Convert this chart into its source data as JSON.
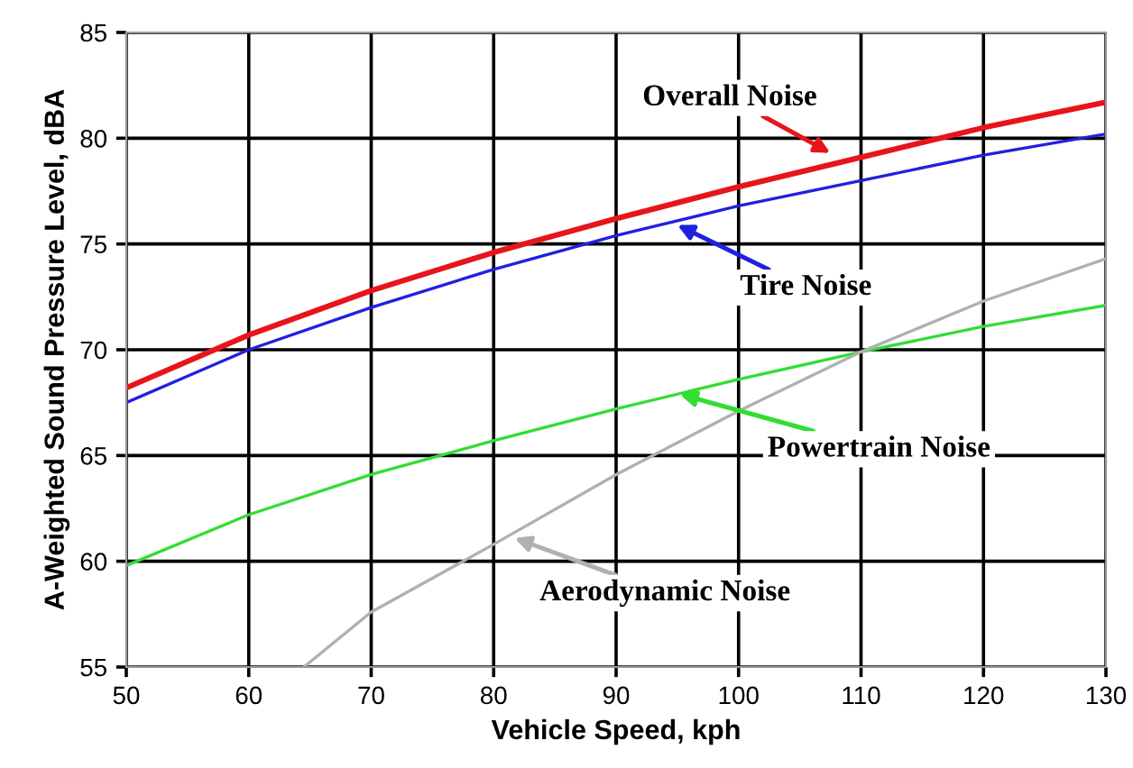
{
  "chart_data": {
    "type": "line",
    "xlabel": "Vehicle Speed, kph",
    "ylabel": "A-Weighted Sound Pressure Level, dBA",
    "xlim": [
      50,
      130
    ],
    "ylim": [
      55,
      85
    ],
    "xticks": [
      50,
      60,
      70,
      80,
      90,
      100,
      110,
      120,
      130
    ],
    "yticks": [
      55,
      60,
      65,
      70,
      75,
      80,
      85
    ],
    "grid": true,
    "legend": false,
    "marker": "none",
    "line_style": "solid",
    "series": [
      {
        "color": "#e8141c",
        "x": [
          50,
          60,
          70,
          80,
          90,
          100,
          110,
          120,
          130
        ],
        "values": [
          68.2,
          70.7,
          72.8,
          74.6,
          76.2,
          77.7,
          79.1,
          80.5,
          81.7
        ]
      },
      {
        "color": "#2020e0",
        "x": [
          50,
          60,
          70,
          80,
          90,
          100,
          110,
          120,
          130
        ],
        "values": [
          67.5,
          70.0,
          72.0,
          73.8,
          75.4,
          76.8,
          78.0,
          79.2,
          80.2
        ]
      },
      {
        "color": "#33dd33",
        "x": [
          50,
          60,
          70,
          80,
          90,
          100,
          110,
          120,
          130
        ],
        "values": [
          59.8,
          62.2,
          64.1,
          65.7,
          67.2,
          68.6,
          69.9,
          71.1,
          72.1
        ]
      },
      {
        "color": "#b0b0b0",
        "x": [
          64.5,
          70,
          80,
          90,
          100,
          110,
          120,
          130
        ],
        "values": [
          55,
          57.6,
          60.8,
          64.1,
          67.1,
          69.9,
          72.3,
          74.3
        ]
      }
    ],
    "annotations": [
      {
        "text": "Overall Noise",
        "x": 107.5,
        "y": 79.3
      },
      {
        "text": "Tire Noise",
        "x": 95,
        "y": 75.9
      },
      {
        "text": "Powertrain Noise",
        "x": 95.2,
        "y": 67.9
      },
      {
        "text": "Aerodynamic Noise",
        "x": 81.7,
        "y": 61.1
      }
    ]
  }
}
